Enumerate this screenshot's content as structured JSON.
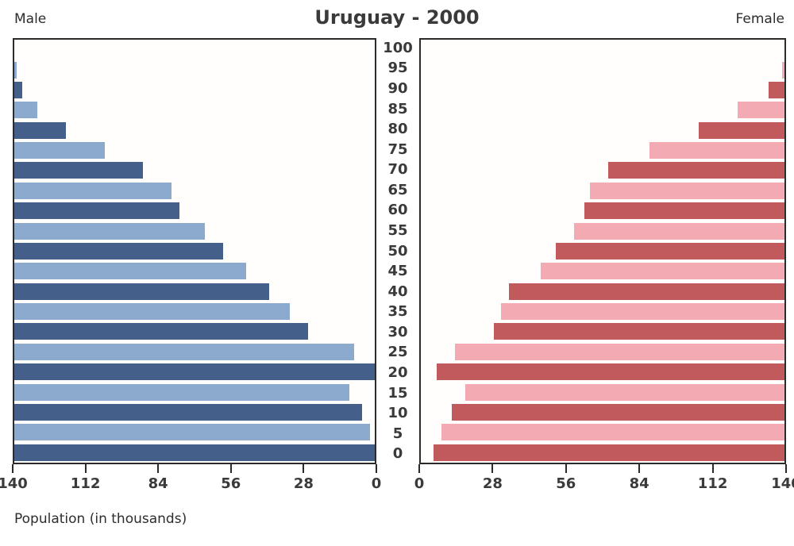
{
  "header": {
    "title": "Uruguay - 2000",
    "male_label": "Male",
    "female_label": "Female"
  },
  "footer": {
    "xlabel": "Population (in thousands)"
  },
  "chart_data": {
    "type": "bar",
    "subtype": "population-pyramid",
    "title": "Uruguay - 2000",
    "xlabel": "Population (in thousands)",
    "ylabel": "Age group",
    "xlim": [
      0,
      140
    ],
    "axis_ticks": [
      0,
      28,
      56,
      84,
      112,
      140
    ],
    "grid": false,
    "legend_position": "top-corners",
    "categories": [
      0,
      5,
      10,
      15,
      20,
      25,
      30,
      35,
      40,
      45,
      50,
      55,
      60,
      65,
      70,
      75,
      80,
      85,
      90,
      95,
      100
    ],
    "series": [
      {
        "name": "Male",
        "side": "left",
        "values": [
          140,
          138,
          135,
          130,
          140,
          132,
          114,
          107,
          99,
          90,
          81,
          74,
          64,
          61,
          50,
          35,
          20,
          9,
          3,
          1,
          0
        ]
      },
      {
        "name": "Female",
        "side": "right",
        "values": [
          135,
          132,
          128,
          123,
          134,
          127,
          112,
          109,
          106,
          94,
          88,
          81,
          77,
          75,
          68,
          52,
          33,
          18,
          6,
          1,
          0
        ]
      }
    ],
    "colors": {
      "male_dark": "#44608a",
      "male_light": "#8caacd",
      "female_dark": "#c05a5d",
      "female_light": "#f3aab2",
      "frame": "#2b2b2b",
      "text": "#3a3a3a",
      "background": "#ffffff"
    }
  }
}
